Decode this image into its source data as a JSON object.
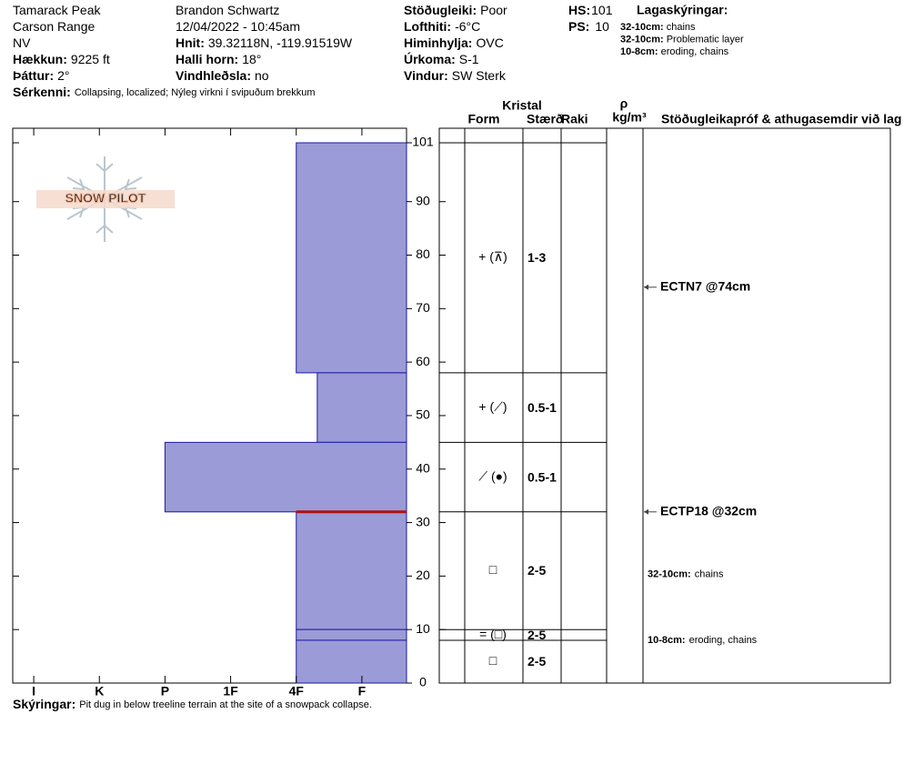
{
  "header": {
    "location": [
      "Tamarack Peak",
      "Carson Range",
      "NV"
    ],
    "elevation": {
      "label": "Hækkun:",
      "value": "9225 ft"
    },
    "aspect": {
      "label": "Þáttur:",
      "value": "2°"
    },
    "features": {
      "label": "Sérkenni:",
      "value": "Collapsing, localized;  Nýleg virkni í svipuðum brekkum"
    },
    "observer": "Brandon Schwartz",
    "datetime": "12/04/2022 - 10:45am",
    "coords": {
      "label": "Hnit:",
      "value": "39.32118N, -119.91519W"
    },
    "slope": {
      "label": "Halli horn:",
      "value": "18°"
    },
    "wind_loading": {
      "label": "Vindhleðsla:",
      "value": "no"
    },
    "stability": {
      "label": "Stöðugleiki:",
      "value": "Poor"
    },
    "air_temp": {
      "label": "Lofthiti:",
      "value": "-6°C"
    },
    "sky": {
      "label": "Himinhylja:",
      "value": "OVC"
    },
    "precip": {
      "label": "Úrkoma:",
      "value": "S-1"
    },
    "wind": {
      "label": "Vindur:",
      "value": "SW Sterk"
    },
    "hs": {
      "label": "HS:",
      "value": "101"
    },
    "ps": {
      "label": "PS:",
      "value": "10"
    },
    "legend_title": "Lagaskýringar:",
    "legend_notes": [
      {
        "range": "32-10cm:",
        "text": "chains"
      },
      {
        "range": "32-10cm:",
        "text": "Problematic layer"
      },
      {
        "range": "10-8cm:",
        "text": "eroding, chains"
      }
    ]
  },
  "logo": "SNOW PILOT",
  "chart_data": {
    "type": "snowpit",
    "ylim": [
      0,
      101
    ],
    "yticks": [
      0,
      10,
      20,
      30,
      40,
      50,
      60,
      70,
      80,
      90,
      101
    ],
    "xlim": [
      0.68,
      6.68
    ],
    "xticks": [
      {
        "value": 1,
        "label": "I"
      },
      {
        "value": 2,
        "label": "K"
      },
      {
        "value": 3,
        "label": "P"
      },
      {
        "value": 4,
        "label": "1F"
      },
      {
        "value": 5,
        "label": "4F"
      },
      {
        "value": 6,
        "label": "F"
      }
    ],
    "color": "#9b9bd7",
    "layers": [
      {
        "top": 101,
        "bottom": 58,
        "hardness": 5,
        "form": "+ (⊼)",
        "size": "1-3"
      },
      {
        "top": 58,
        "bottom": 45,
        "hardness": 5.32,
        "form": "+ (⟋)",
        "size": "0.5-1"
      },
      {
        "top": 45,
        "bottom": 32,
        "hardness": 3,
        "form": "⟋ (●)",
        "size": "0.5-1"
      },
      {
        "top": 32,
        "bottom": 10,
        "hardness": 5,
        "form": "□",
        "size": "2-5"
      },
      {
        "top": 10,
        "bottom": 8,
        "hardness": 5,
        "form": "= (□)",
        "size": "2-5"
      },
      {
        "top": 8,
        "bottom": 0,
        "hardness": 5,
        "form": "□",
        "size": "2-5"
      }
    ],
    "problem_layer": 32,
    "columns": {
      "crystal": "Kristal",
      "form": "Form",
      "size": "Stærð",
      "moisture": "Raki",
      "density_symbol": "ρ",
      "density_unit": "kg/m³",
      "comments": "Stöðugleikapróf & athugasemdir við lag"
    },
    "tests": [
      {
        "label": "ECTN7 @74cm",
        "height": 74
      },
      {
        "label": "ECTP18 @32cm",
        "height": 32
      }
    ],
    "comments": [
      {
        "range": "32-10cm:",
        "text": "chains",
        "top": 32,
        "bottom": 10
      },
      {
        "range": "10-8cm:",
        "text": "eroding, chains",
        "top": 10,
        "bottom": 8
      }
    ]
  },
  "footer": {
    "label": "Skýringar:",
    "value": "Pit dug in below treeline terrain at the site of a snowpack collapse."
  }
}
